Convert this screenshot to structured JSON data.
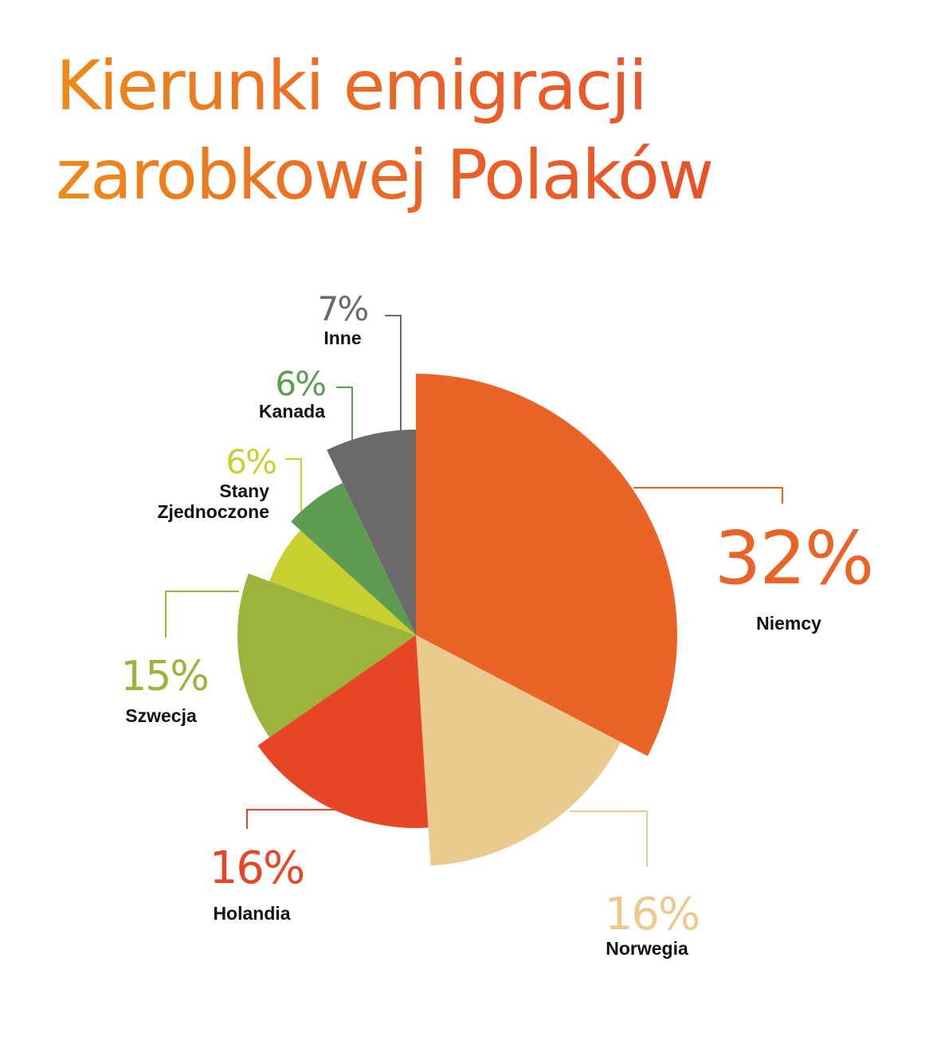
{
  "title_lines": [
    "Kierunki emigracji",
    "zarobkowej Polaków"
  ],
  "chart_data": {
    "type": "pie",
    "title": "Kierunki emigracji zarobkowej Polaków",
    "unit": "%",
    "slices": [
      {
        "label": "Niemcy",
        "value": 32,
        "value_label": "32%",
        "color": "#ea6428"
      },
      {
        "label": "Norwegia",
        "value": 16,
        "value_label": "16%",
        "color": "#eaca8e"
      },
      {
        "label": "Holandia",
        "value": 16,
        "value_label": "16%",
        "color": "#e64626"
      },
      {
        "label": "Szwecja",
        "value": 15,
        "value_label": "15%",
        "color": "#9bb53c"
      },
      {
        "label": "Stany Zjednoczone",
        "value": 6,
        "value_label": "6%",
        "color": "#c9cf2e"
      },
      {
        "label": "Kanada",
        "value": 6,
        "value_label": "6%",
        "color": "#5e9c53"
      },
      {
        "label": "Inne",
        "value": 7,
        "value_label": "7%",
        "color": "#6a6a6a"
      }
    ]
  }
}
